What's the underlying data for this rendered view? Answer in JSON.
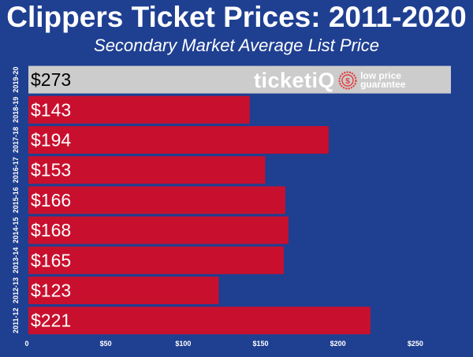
{
  "chart_data": {
    "type": "bar",
    "orientation": "horizontal",
    "title": "Clippers Ticket Prices: 2011-2020",
    "subtitle": "Secondary Market Average List Price",
    "categories": [
      "2019-20",
      "2018-19",
      "2017-18",
      "2016-17",
      "2015-16",
      "2014-15",
      "2013-14",
      "2012-13",
      "2011-12"
    ],
    "values": [
      273,
      143,
      194,
      153,
      166,
      168,
      165,
      123,
      221
    ],
    "value_labels": [
      "$273",
      "$143",
      "$194",
      "$153",
      "$166",
      "$168",
      "$165",
      "$123",
      "$221"
    ],
    "xlim": [
      0,
      273
    ],
    "xticks": [
      0,
      50,
      100,
      150,
      200,
      250
    ],
    "xtick_labels": [
      "0",
      "$50",
      "$100",
      "$150",
      "$200",
      "$250"
    ],
    "grid": false,
    "colors": {
      "background": "#1f3f91",
      "bar": "#c8102e",
      "highlight_bar": "#cccccc",
      "text_light": "#ffffff",
      "text_dark": "#000000"
    },
    "highlight_index": 0
  },
  "header": {
    "title": "Clippers Ticket Prices: 2011-2020",
    "subtitle": "Secondary Market Average List Price"
  },
  "watermark": {
    "brand": "ticketiQ",
    "brand_main": "ticket",
    "brand_suffix": "iQ",
    "tagline_line1": "low price",
    "tagline_line2": "guarantee",
    "seal_icon": "dollar-seal-icon"
  }
}
